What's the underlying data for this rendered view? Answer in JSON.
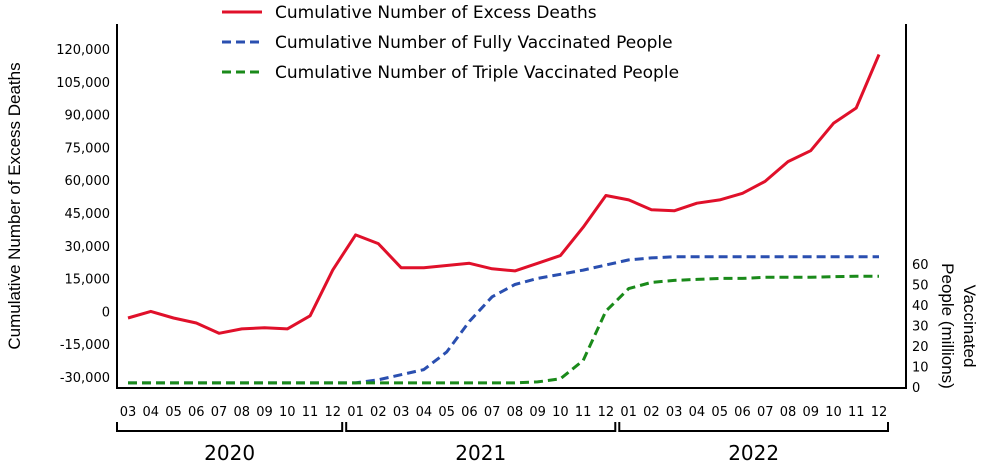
{
  "chart_data": {
    "type": "line",
    "xlabel": "",
    "ylabel": "Cumulative Number of Excess Deaths",
    "y2label_line1": "Vaccinated",
    "y2label_line2": "People (millions)",
    "ylim": [
      -30000,
      120000
    ],
    "y2lim": [
      0,
      60
    ],
    "yticks": [
      "120,000",
      "105,000",
      "90,000",
      "75,000",
      "60,000",
      "45,000",
      "30,000",
      "15,000",
      "0",
      "-15,000",
      "-30,000"
    ],
    "ytick_values": [
      120000,
      105000,
      90000,
      75000,
      60000,
      45000,
      30000,
      15000,
      0,
      -15000,
      -30000
    ],
    "y2ticks": [
      "60",
      "50",
      "40",
      "30",
      "20",
      "10",
      "0"
    ],
    "y2tick_values": [
      60,
      50,
      40,
      30,
      20,
      10,
      0
    ],
    "x": [
      "03",
      "04",
      "05",
      "06",
      "07",
      "08",
      "09",
      "10",
      "11",
      "12",
      "01",
      "02",
      "03",
      "04",
      "05",
      "06",
      "07",
      "08",
      "09",
      "10",
      "11",
      "12",
      "01",
      "02",
      "03",
      "04",
      "05",
      "06",
      "07",
      "08",
      "09",
      "10",
      "11",
      "12"
    ],
    "years": [
      {
        "label": "2020",
        "start": 0,
        "end": 9
      },
      {
        "label": "2021",
        "start": 10,
        "end": 21
      },
      {
        "label": "2022",
        "start": 22,
        "end": 33
      }
    ],
    "legend_position": "top",
    "grid": false,
    "series": [
      {
        "name": "Cumulative Number of Excess Deaths",
        "axis": "left",
        "color": "#e0102a",
        "style": "solid",
        "values": [
          -3000,
          0,
          -3000,
          -5300,
          -10000,
          -8000,
          -7500,
          -8000,
          -2000,
          19000,
          35000,
          31000,
          20000,
          20000,
          21000,
          22000,
          19500,
          18500,
          22000,
          25500,
          38500,
          53000,
          51000,
          46500,
          46000,
          49500,
          51000,
          54000,
          59500,
          68500,
          73500,
          86000,
          93000,
          117500
        ]
      },
      {
        "name": "Cumulative Number of Fully Vaccinated People",
        "axis": "right",
        "color": "#2a4fb0",
        "style": "dashed",
        "values": [
          2,
          2,
          2,
          2,
          2,
          2,
          2,
          2,
          2,
          2,
          2,
          3.5,
          6,
          8.5,
          17,
          32,
          44,
          50,
          53,
          55,
          57,
          59.5,
          62,
          63,
          63.5,
          63.5,
          63.5,
          63.5,
          63.5,
          63.5,
          63.5,
          63.5,
          63.5,
          63.5
        ]
      },
      {
        "name": "Cumulative Number of Triple Vaccinated People",
        "axis": "right",
        "color": "#1a8a1a",
        "style": "dashed",
        "values": [
          2,
          2,
          2,
          2,
          2,
          2,
          2,
          2,
          2,
          2,
          2,
          2,
          2,
          2,
          2,
          2,
          2,
          2,
          2.5,
          4,
          13,
          37,
          48,
          51,
          52,
          52.5,
          53,
          53,
          53.5,
          53.5,
          53.5,
          53.8,
          54,
          54
        ]
      }
    ]
  }
}
